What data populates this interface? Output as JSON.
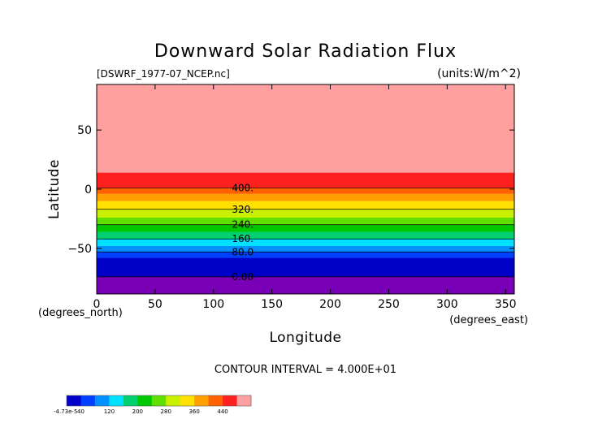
{
  "chart_data": {
    "type": "heatmap",
    "title": "Downward Solar Radiation Flux",
    "subtitle_left": "[DSWRF_1977-07_NCEP.nc]",
    "subtitle_right": "(units:W/m^2)",
    "xlabel": "Longitude",
    "ylabel": "Latitude",
    "x_unit_label": "(degrees_east)",
    "y_unit_label": "(degrees_north)",
    "xlim": [
      0,
      357.5
    ],
    "ylim": [
      -88.5,
      88.5
    ],
    "x_ticks": [
      0,
      50,
      100,
      150,
      200,
      250,
      300,
      350
    ],
    "y_ticks": [
      -50,
      0,
      50
    ],
    "contour_interval_text": "CONTOUR INTERVAL = 4.000E+01",
    "contour_interval": 40,
    "bands": [
      {
        "lat_from": -88.5,
        "lat_to": -74,
        "color": "#7a00b8"
      },
      {
        "lat_from": -74,
        "lat_to": -58,
        "color": "#0000c8"
      },
      {
        "lat_from": -58,
        "lat_to": -53,
        "color": "#0040ff"
      },
      {
        "lat_from": -53,
        "lat_to": -48,
        "color": "#0090ff"
      },
      {
        "lat_from": -48,
        "lat_to": -42,
        "color": "#00e0ff"
      },
      {
        "lat_from": -42,
        "lat_to": -36,
        "color": "#00d070"
      },
      {
        "lat_from": -36,
        "lat_to": -30,
        "color": "#00c800"
      },
      {
        "lat_from": -30,
        "lat_to": -24,
        "color": "#60e000"
      },
      {
        "lat_from": -24,
        "lat_to": -17,
        "color": "#c8f000"
      },
      {
        "lat_from": -17,
        "lat_to": -10,
        "color": "#ffe000"
      },
      {
        "lat_from": -10,
        "lat_to": -4,
        "color": "#ffa000"
      },
      {
        "lat_from": -4,
        "lat_to": 1,
        "color": "#ff6000"
      },
      {
        "lat_from": 1,
        "lat_to": 14,
        "color": "#ff2020"
      },
      {
        "lat_from": 14,
        "lat_to": 88.5,
        "color": "#ffa0a0"
      }
    ],
    "contours": [
      {
        "label": "400.",
        "lat": 1
      },
      {
        "label": "320.",
        "lat": -17
      },
      {
        "label": "240.",
        "lat": -30
      },
      {
        "label": "160.",
        "lat": -42
      },
      {
        "label": "80.0",
        "lat": -53
      },
      {
        "label": "0.00",
        "lat": -74
      }
    ],
    "colorbar": {
      "min_label": "-4.73e-5",
      "labels": [
        "40",
        "120",
        "200",
        "280",
        "360",
        "440"
      ],
      "colors": [
        "#0000c8",
        "#0040ff",
        "#0090ff",
        "#00e0ff",
        "#00d070",
        "#00c800",
        "#60e000",
        "#c8f000",
        "#ffe000",
        "#ffa000",
        "#ff6000",
        "#ff2020",
        "#ffa0a0"
      ]
    }
  }
}
